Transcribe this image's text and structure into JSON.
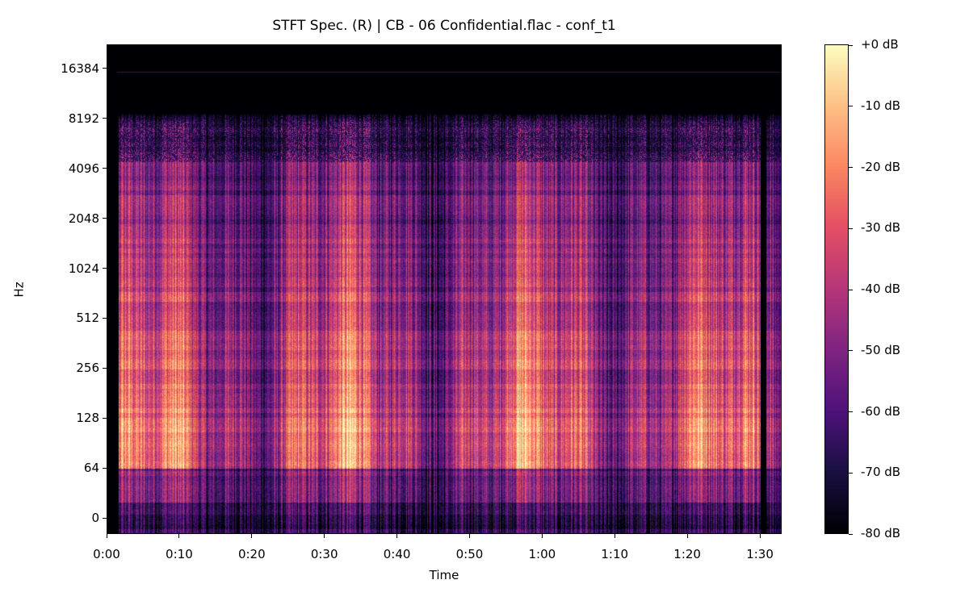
{
  "chart_data": {
    "type": "heatmap",
    "title": "STFT Spec. (R) | CB - 06 Confidential.flac - conf_t1",
    "xlabel": "Time",
    "ylabel": "Hz",
    "x_ticks": [
      "0:00",
      "0:10",
      "0:20",
      "0:30",
      "0:40",
      "0:50",
      "1:00",
      "1:10",
      "1:20",
      "1:30"
    ],
    "x_tick_seconds": [
      0,
      10,
      20,
      30,
      40,
      50,
      60,
      70,
      80,
      90
    ],
    "xlim_seconds": [
      0,
      93
    ],
    "y_scale": "symlog",
    "y_ticks": [
      "0",
      "64",
      "128",
      "256",
      "512",
      "1024",
      "2048",
      "4096",
      "8192",
      "16384"
    ],
    "colorbar": {
      "colormap": "magma",
      "ticks": [
        "+0 dB",
        "-10 dB",
        "-20 dB",
        "-30 dB",
        "-40 dB",
        "-50 dB",
        "-60 dB",
        "-70 dB",
        "-80 dB"
      ],
      "range_db": [
        -80,
        0
      ]
    },
    "description_of_content": "Energy concentrated 64–1024 Hz (around -10 to -25 dB), fading above ~2 kHz and cutting off near 8 kHz; faint line near 16 kHz"
  }
}
